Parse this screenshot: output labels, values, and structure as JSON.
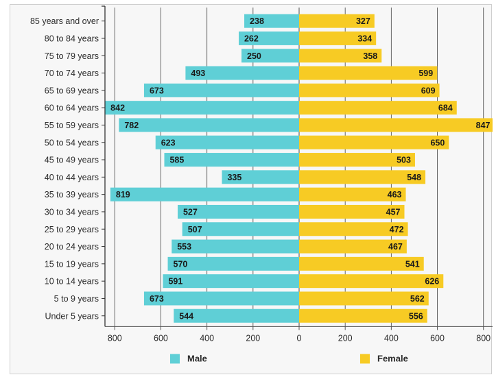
{
  "chart_data": {
    "type": "bar",
    "orientation": "horizontal",
    "layout": "population-pyramid",
    "categories": [
      "85 years and over",
      "80 to 84 years",
      "75 to 79 years",
      "70 to 74 years",
      "65 to 69 years",
      "60 to 64 years",
      "55 to 59 years",
      "50 to 54 years",
      "45 to 49 years",
      "40 to 44 years",
      "35 to 39 years",
      "30 to 34 years",
      "25 to 29 years",
      "20 to 24 years",
      "15 to 19 years",
      "10 to 14 years",
      "5 to 9 years",
      "Under 5 years"
    ],
    "series": [
      {
        "name": "Male",
        "color": "#5fcfd6",
        "side": "left",
        "values": [
          238,
          262,
          250,
          493,
          673,
          842,
          782,
          623,
          585,
          335,
          819,
          527,
          507,
          553,
          570,
          591,
          673,
          544
        ]
      },
      {
        "name": "Female",
        "color": "#f7cb24",
        "side": "right",
        "values": [
          327,
          334,
          358,
          599,
          609,
          684,
          847,
          650,
          503,
          548,
          463,
          457,
          472,
          467,
          541,
          626,
          562,
          556
        ]
      }
    ],
    "xlim": [
      -850,
      850
    ],
    "xticks": [
      {
        "value": -800,
        "label": "800"
      },
      {
        "value": -600,
        "label": "600"
      },
      {
        "value": -400,
        "label": "400"
      },
      {
        "value": -200,
        "label": "200"
      },
      {
        "value": 0,
        "label": "0"
      },
      {
        "value": 200,
        "label": "200"
      },
      {
        "value": 400,
        "label": "400"
      },
      {
        "value": 600,
        "label": "600"
      },
      {
        "value": 800,
        "label": "800"
      }
    ],
    "grid": true,
    "legend_position": "bottom",
    "title": "",
    "xlabel": "",
    "ylabel": ""
  }
}
